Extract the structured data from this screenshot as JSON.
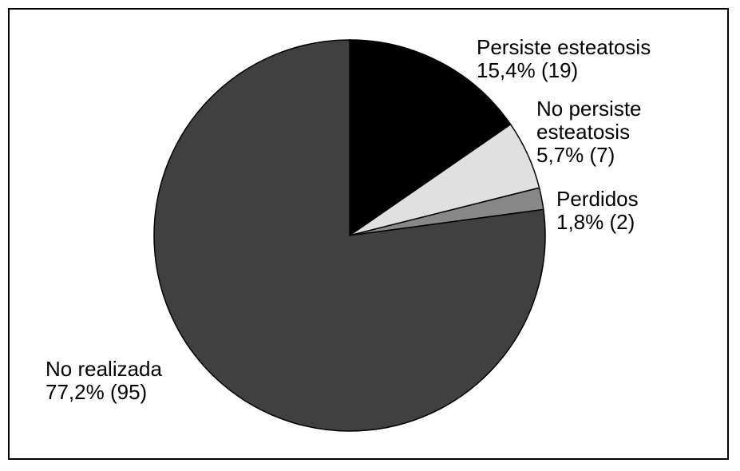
{
  "chart_data": {
    "type": "pie",
    "categories": [
      "Persiste esteatosis",
      "No persiste esteatosis",
      "Perdidos",
      "No realizada"
    ],
    "values": [
      15.4,
      5.7,
      1.8,
      77.2
    ],
    "value_labels": [
      "15,4% (19)",
      "5,7% (7)",
      "1,8% (2)",
      "77,2% (95)"
    ],
    "colors": [
      "#000000",
      "#e0e0e0",
      "#888888",
      "#404040"
    ]
  }
}
